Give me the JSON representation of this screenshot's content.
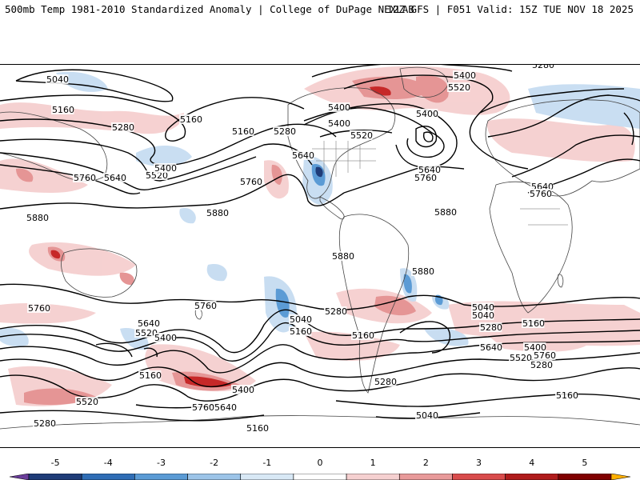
{
  "header": {
    "left": "500mb Temp 1981-2010 Standardized Anomaly | College of DuPage NEXLAB",
    "right": "12Z GFS | F051 Valid: 15Z TUE NOV 18 2025"
  },
  "colorbar": {
    "ticks": [
      "-5",
      "-4",
      "-3",
      "-2",
      "-1",
      "0",
      "1",
      "2",
      "3",
      "4",
      "5"
    ],
    "min": -5.5,
    "max": 5.5,
    "colors": [
      "#6a3d9a",
      "#1f3c78",
      "#2f6db5",
      "#5b9bd5",
      "#9cc4e8",
      "#d8e8f5",
      "#ffffff",
      "#f5d0d0",
      "#e89a9a",
      "#d94c4c",
      "#b01c1c",
      "#800000",
      "#ffb000"
    ]
  },
  "map": {
    "contour_labels": [
      {
        "text": "5040"
      },
      {
        "text": "5160"
      },
      {
        "text": "5280"
      },
      {
        "text": "5160"
      },
      {
        "text": "5160"
      },
      {
        "text": "5280"
      },
      {
        "text": "5400"
      },
      {
        "text": "5400"
      },
      {
        "text": "5520"
      },
      {
        "text": "5640"
      },
      {
        "text": "5760"
      },
      {
        "text": "5760"
      },
      {
        "text": "5640"
      },
      {
        "text": "5520"
      },
      {
        "text": "5400"
      },
      {
        "text": "5880"
      },
      {
        "text": "5880"
      },
      {
        "text": "5280"
      },
      {
        "text": "5400"
      },
      {
        "text": "5520"
      },
      {
        "text": "5400"
      },
      {
        "text": "5640"
      },
      {
        "text": "5760"
      },
      {
        "text": "5640"
      },
      {
        "text": "5760"
      },
      {
        "text": "5880"
      },
      {
        "text": "5880"
      },
      {
        "text": "5880"
      },
      {
        "text": "5760"
      },
      {
        "text": "5760"
      },
      {
        "text": "5640"
      },
      {
        "text": "5520"
      },
      {
        "text": "5400"
      },
      {
        "text": "5040"
      },
      {
        "text": "5160"
      },
      {
        "text": "5280"
      },
      {
        "text": "5160"
      },
      {
        "text": "5040"
      },
      {
        "text": "5040"
      },
      {
        "text": "5280"
      },
      {
        "text": "5160"
      },
      {
        "text": "5640"
      },
      {
        "text": "5400"
      },
      {
        "text": "5760"
      },
      {
        "text": "5520"
      },
      {
        "text": "5280"
      },
      {
        "text": "5160"
      },
      {
        "text": "5400"
      },
      {
        "text": "5640"
      },
      {
        "text": "5760"
      },
      {
        "text": "5520"
      },
      {
        "text": "5280"
      },
      {
        "text": "5160"
      },
      {
        "text": "5040"
      },
      {
        "text": "5280"
      },
      {
        "text": "5160"
      }
    ]
  }
}
